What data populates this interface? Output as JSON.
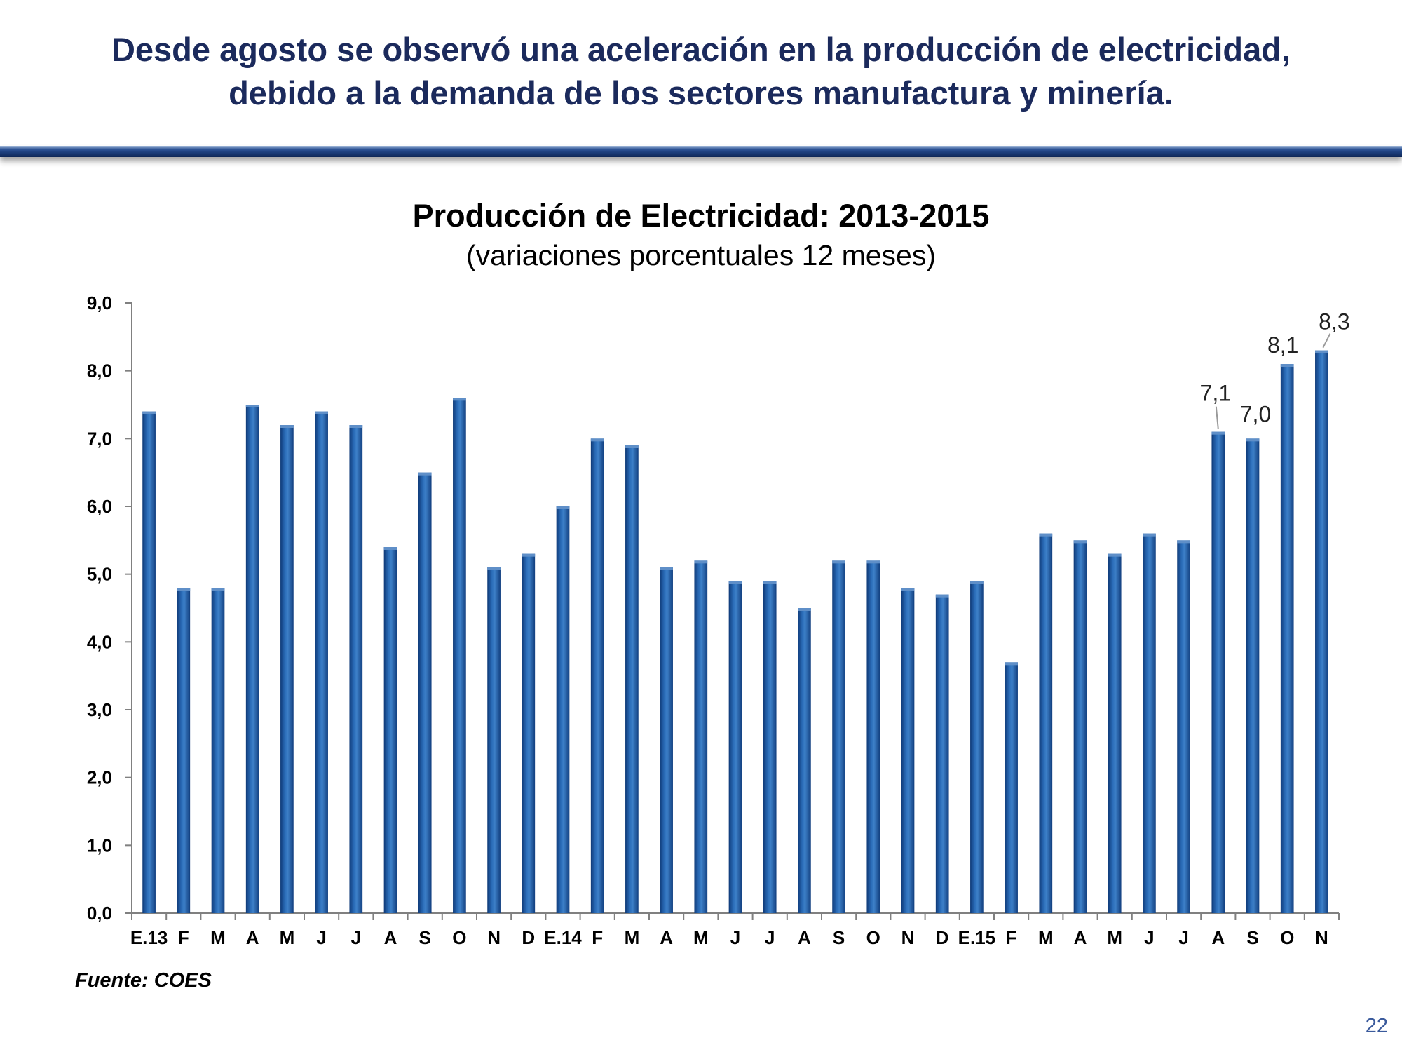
{
  "slide": {
    "headline_line1": "Desde agosto se observó una aceleración en la producción de electricidad,",
    "headline_line2": "debido a la demanda de los sectores manufactura y minería.",
    "source": "Fuente: COES",
    "page_number": "22"
  },
  "colors": {
    "headline": "#1b2a5c",
    "bar": "#1f5aa0",
    "bar_highlight": "#5f8fc8",
    "divider": "#1c3d7a",
    "page_number": "#3a5a9c"
  },
  "chart_data": {
    "type": "bar",
    "title": "Producción de Electricidad: 2013-2015",
    "subtitle": "(variaciones porcentuales 12 meses)",
    "xlabel": "",
    "ylabel": "",
    "ylim": [
      0,
      9
    ],
    "yticks": [
      "0,0",
      "1,0",
      "2,0",
      "3,0",
      "4,0",
      "5,0",
      "6,0",
      "7,0",
      "8,0",
      "9,0"
    ],
    "grid": false,
    "legend": "none",
    "categories": [
      "E.13",
      "F",
      "M",
      "A",
      "M",
      "J",
      "J",
      "A",
      "S",
      "O",
      "N",
      "D",
      "E.14",
      "F",
      "M",
      "A",
      "M",
      "J",
      "J",
      "A",
      "S",
      "O",
      "N",
      "D",
      "E.15",
      "F",
      "M",
      "A",
      "M",
      "J",
      "J",
      "A",
      "S",
      "O",
      "N"
    ],
    "values": [
      7.4,
      4.8,
      4.8,
      7.5,
      7.2,
      7.4,
      7.2,
      5.4,
      6.5,
      7.6,
      5.1,
      5.3,
      6.0,
      7.0,
      6.9,
      5.1,
      5.2,
      4.9,
      4.9,
      4.5,
      5.2,
      5.2,
      4.8,
      4.7,
      4.9,
      3.7,
      5.6,
      5.5,
      5.3,
      5.6,
      5.5,
      7.1,
      7.0,
      8.1,
      8.3
    ],
    "data_labels": [
      {
        "index": 31,
        "text": "7,1"
      },
      {
        "index": 32,
        "text": "7,0"
      },
      {
        "index": 33,
        "text": "8,1"
      },
      {
        "index": 34,
        "text": "8,3"
      }
    ]
  }
}
